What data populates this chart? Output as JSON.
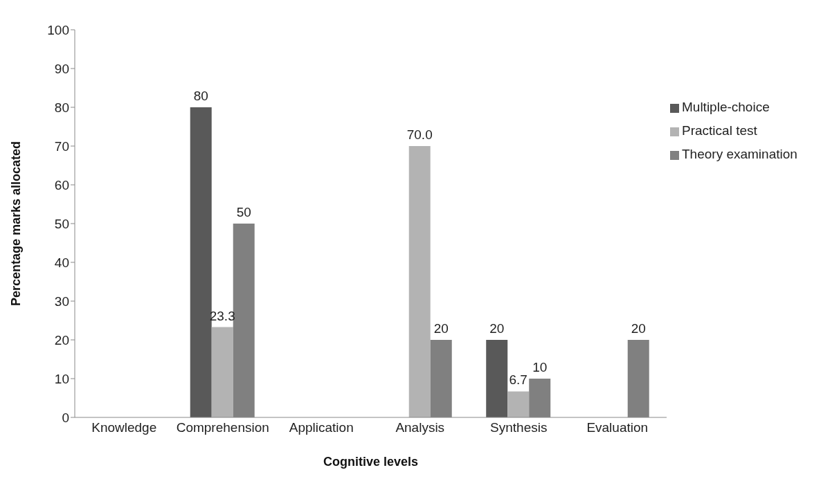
{
  "chart_data": {
    "type": "bar",
    "xlabel": "Cognitive levels",
    "ylabel": "Percentage marks allocated",
    "categories": [
      "Knowledge",
      "Comprehension",
      "Application",
      "Analysis",
      "Synthesis",
      "Evaluation"
    ],
    "series": [
      {
        "name": "Multiple-choice",
        "color": "#595959",
        "values": [
          null,
          80,
          null,
          null,
          20,
          null
        ],
        "value_labels": [
          null,
          "80",
          null,
          null,
          "20",
          null
        ]
      },
      {
        "name": "Practical test",
        "color": "#b3b3b3",
        "values": [
          null,
          23.3,
          null,
          70.0,
          6.7,
          null
        ],
        "value_labels": [
          null,
          "23.3",
          null,
          "70.0",
          "6.7",
          null
        ]
      },
      {
        "name": "Theory examination",
        "color": "#808080",
        "values": [
          null,
          50,
          null,
          20,
          10,
          20
        ],
        "value_labels": [
          null,
          "50",
          null,
          "20",
          "10",
          "20"
        ]
      }
    ],
    "ylim": [
      0,
      100
    ],
    "yticks": [
      0,
      10,
      20,
      30,
      40,
      50,
      60,
      70,
      80,
      90,
      100
    ],
    "grid": false,
    "legend": "top right"
  }
}
